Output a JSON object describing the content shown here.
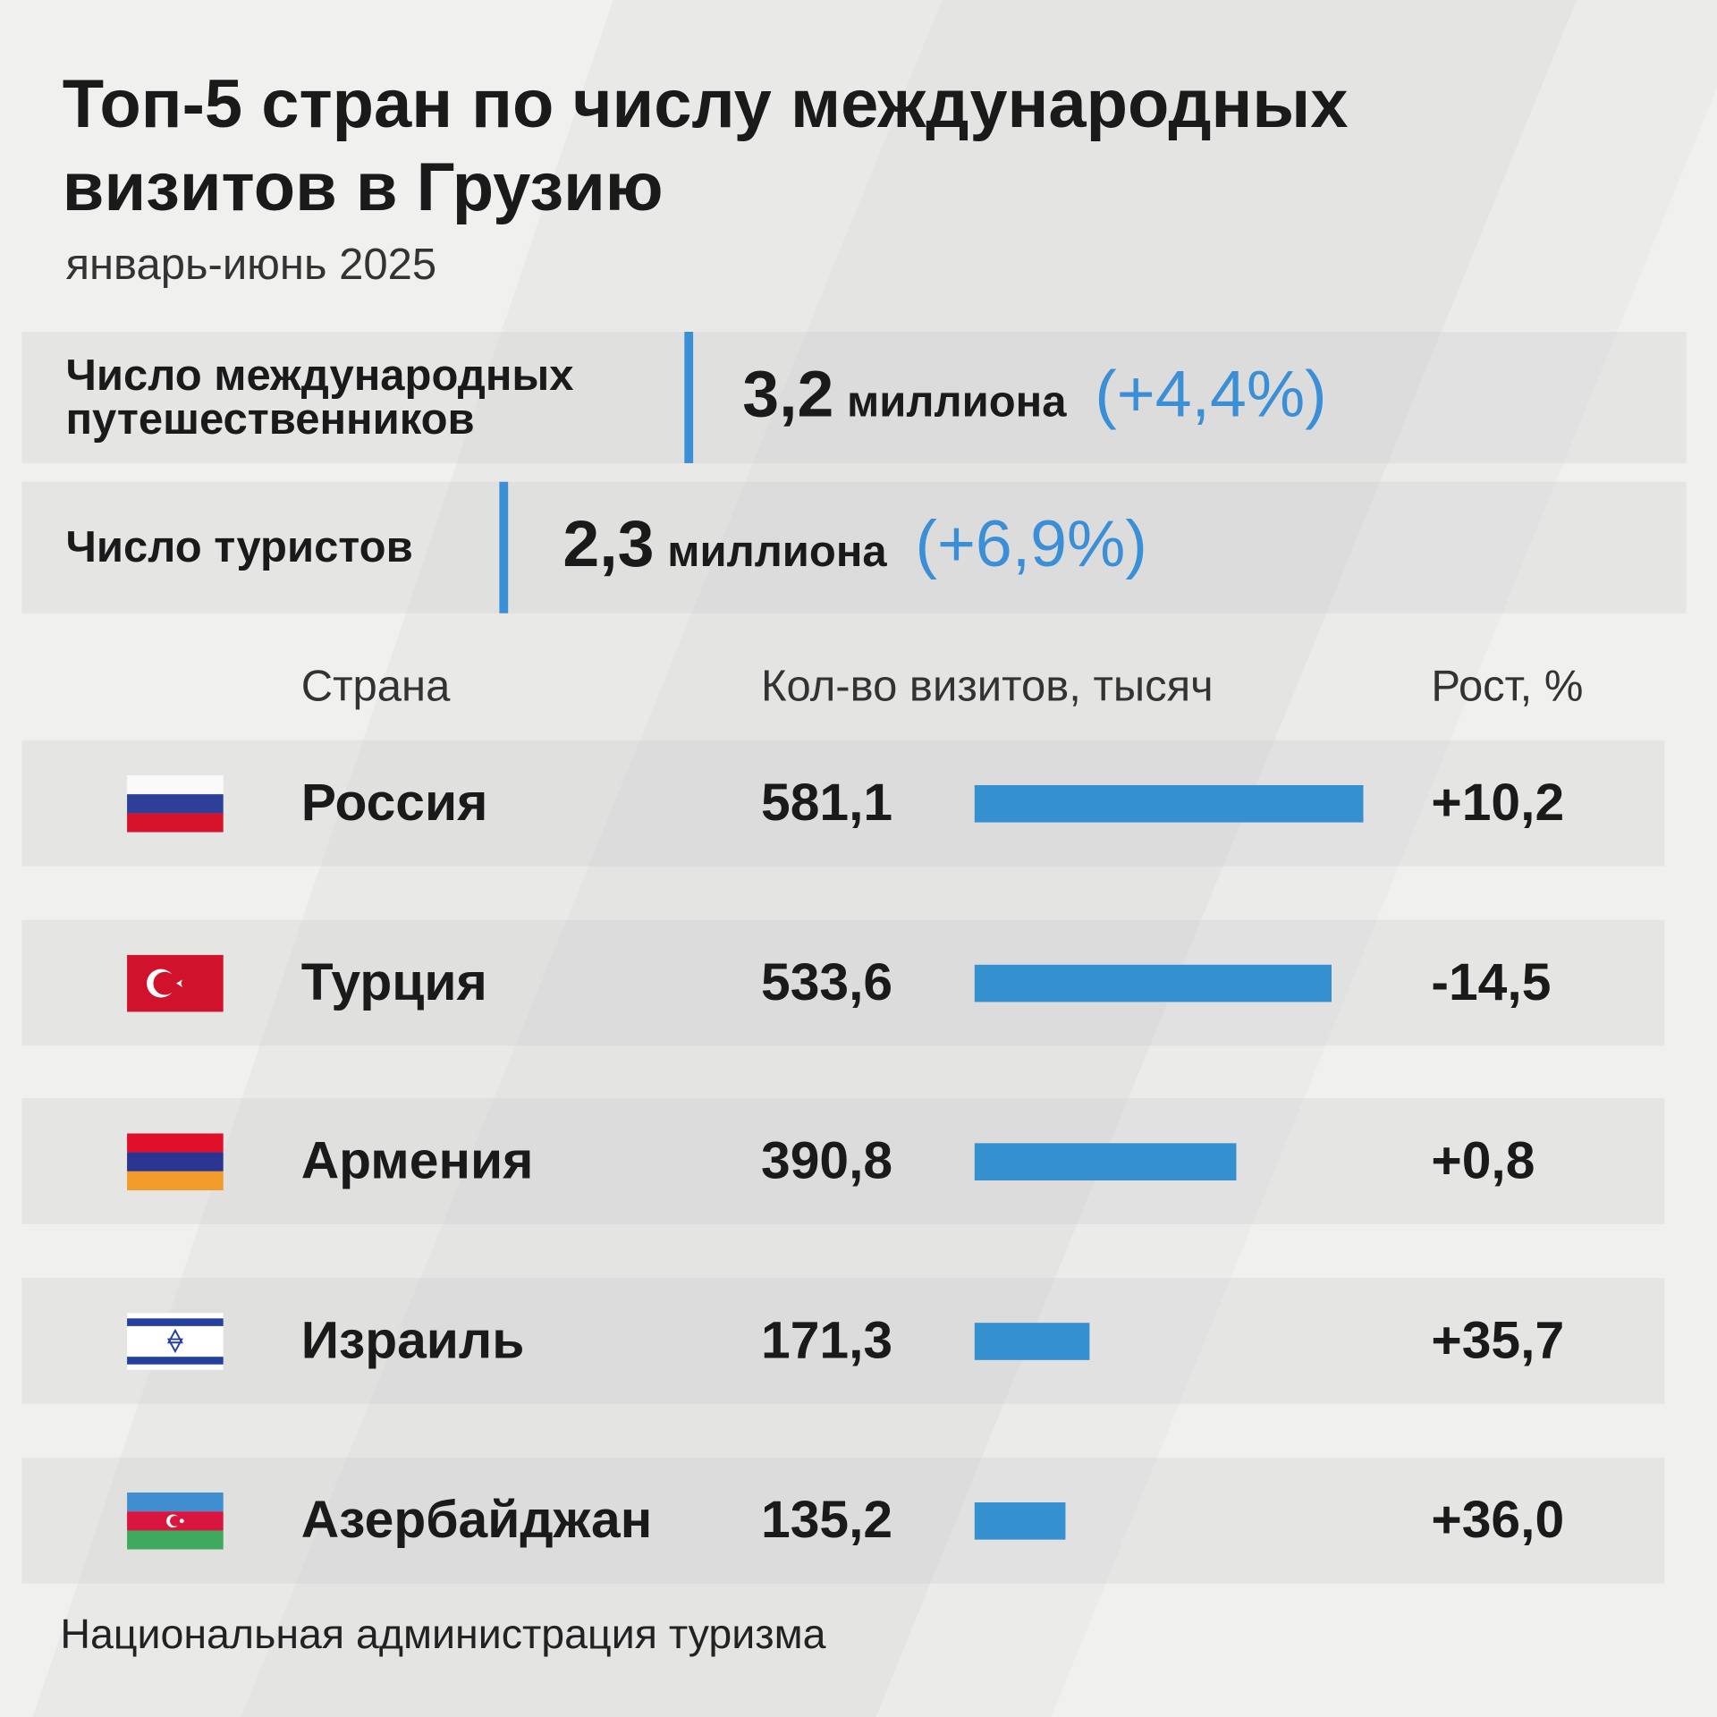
{
  "title": "Топ-5 стран по числу международных визитов в Грузию",
  "subtitle": "январь-июнь 2025",
  "stats": [
    {
      "label": "Число международных путешественников",
      "value": "3,2",
      "unit": "миллиона",
      "change": "(+4,4%)"
    },
    {
      "label": "Число туристов",
      "value": "2,3",
      "unit": "миллиона",
      "change": "(+6,9%)"
    }
  ],
  "headers": {
    "country": "Страна",
    "visits": "Кол-во визитов, тысяч",
    "growth": "Рост, %"
  },
  "colors": {
    "accent": "#3590d0",
    "background": "#f0f0ef"
  },
  "chart_data": {
    "type": "bar",
    "orientation": "horizontal",
    "categories": [
      "Россия",
      "Турция",
      "Армения",
      "Израиль",
      "Азербайджан"
    ],
    "values": [
      581.1,
      533.6,
      390.8,
      171.3,
      135.2
    ],
    "value_labels": [
      "581,1",
      "533,6",
      "390,8",
      "171,3",
      "135,2"
    ],
    "growth_labels": [
      "+10,2",
      "-14,5",
      "+0,8",
      "+35,7",
      "+36,0"
    ],
    "flags": [
      "russia-flag",
      "turkey-flag",
      "armenia-flag",
      "israel-flag",
      "azerbaijan-flag"
    ],
    "ylabel": "Кол-во визитов, тысяч"
  },
  "source": "Национальная администрация туризма"
}
